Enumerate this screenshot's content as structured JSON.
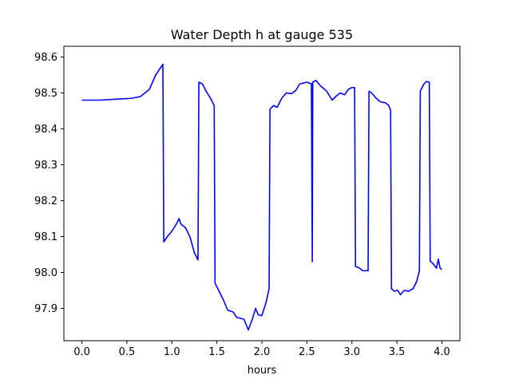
{
  "chart_data": {
    "type": "line",
    "title": "Water Depth h at gauge 535",
    "xlabel": "hours",
    "ylabel": "",
    "xlim": [
      -0.2,
      4.2
    ],
    "ylim": [
      97.81,
      98.63
    ],
    "xticks": [
      0.0,
      0.5,
      1.0,
      1.5,
      2.0,
      2.5,
      3.0,
      3.5,
      4.0
    ],
    "xtick_labels": [
      "0.0",
      "0.5",
      "1.0",
      "1.5",
      "2.0",
      "2.5",
      "3.0",
      "3.5",
      "4.0"
    ],
    "yticks": [
      97.9,
      98.0,
      98.1,
      98.2,
      98.3,
      98.4,
      98.5,
      98.6
    ],
    "ytick_labels": [
      "97.9",
      "98.0",
      "98.1",
      "98.2",
      "98.3",
      "98.4",
      "98.5",
      "98.6"
    ],
    "grid": false,
    "series": [
      {
        "color": "#0000ff",
        "points": [
          [
            0.0,
            98.48
          ],
          [
            0.2,
            98.48
          ],
          [
            0.4,
            98.483
          ],
          [
            0.55,
            98.485
          ],
          [
            0.65,
            98.49
          ],
          [
            0.75,
            98.51
          ],
          [
            0.82,
            98.55
          ],
          [
            0.9,
            98.58
          ],
          [
            0.91,
            98.085
          ],
          [
            0.95,
            98.1
          ],
          [
            1.0,
            98.115
          ],
          [
            1.05,
            98.135
          ],
          [
            1.08,
            98.15
          ],
          [
            1.1,
            98.135
          ],
          [
            1.15,
            98.125
          ],
          [
            1.2,
            98.1
          ],
          [
            1.25,
            98.055
          ],
          [
            1.29,
            98.035
          ],
          [
            1.3,
            98.53
          ],
          [
            1.34,
            98.525
          ],
          [
            1.38,
            98.505
          ],
          [
            1.43,
            98.485
          ],
          [
            1.47,
            98.465
          ],
          [
            1.48,
            97.97
          ],
          [
            1.52,
            97.95
          ],
          [
            1.57,
            97.925
          ],
          [
            1.62,
            97.895
          ],
          [
            1.68,
            97.89
          ],
          [
            1.72,
            97.875
          ],
          [
            1.8,
            97.87
          ],
          [
            1.85,
            97.84
          ],
          [
            1.9,
            97.875
          ],
          [
            1.93,
            97.9
          ],
          [
            1.96,
            97.882
          ],
          [
            2.0,
            97.88
          ],
          [
            2.05,
            97.92
          ],
          [
            2.08,
            97.955
          ],
          [
            2.09,
            98.455
          ],
          [
            2.13,
            98.465
          ],
          [
            2.17,
            98.46
          ],
          [
            2.22,
            98.485
          ],
          [
            2.27,
            98.5
          ],
          [
            2.33,
            98.498
          ],
          [
            2.38,
            98.508
          ],
          [
            2.42,
            98.525
          ],
          [
            2.5,
            98.53
          ],
          [
            2.55,
            98.525
          ],
          [
            2.56,
            98.03
          ],
          [
            2.565,
            98.53
          ],
          [
            2.6,
            98.535
          ],
          [
            2.65,
            98.52
          ],
          [
            2.72,
            98.505
          ],
          [
            2.78,
            98.48
          ],
          [
            2.82,
            98.49
          ],
          [
            2.87,
            98.5
          ],
          [
            2.92,
            98.495
          ],
          [
            2.96,
            98.51
          ],
          [
            3.0,
            98.515
          ],
          [
            3.03,
            98.515
          ],
          [
            3.04,
            98.017
          ],
          [
            3.08,
            98.013
          ],
          [
            3.12,
            98.005
          ],
          [
            3.18,
            98.005
          ],
          [
            3.19,
            98.505
          ],
          [
            3.22,
            98.5
          ],
          [
            3.27,
            98.485
          ],
          [
            3.32,
            98.475
          ],
          [
            3.37,
            98.473
          ],
          [
            3.41,
            98.465
          ],
          [
            3.43,
            98.452
          ],
          [
            3.44,
            97.955
          ],
          [
            3.47,
            97.948
          ],
          [
            3.51,
            97.95
          ],
          [
            3.54,
            97.938
          ],
          [
            3.58,
            97.95
          ],
          [
            3.63,
            97.948
          ],
          [
            3.68,
            97.955
          ],
          [
            3.72,
            97.975
          ],
          [
            3.75,
            98.005
          ],
          [
            3.76,
            98.505
          ],
          [
            3.8,
            98.525
          ],
          [
            3.83,
            98.532
          ],
          [
            3.86,
            98.53
          ],
          [
            3.87,
            98.032
          ],
          [
            3.9,
            98.025
          ],
          [
            3.94,
            98.012
          ],
          [
            3.96,
            98.037
          ],
          [
            3.98,
            98.012
          ],
          [
            4.0,
            98.008
          ]
        ]
      }
    ]
  }
}
